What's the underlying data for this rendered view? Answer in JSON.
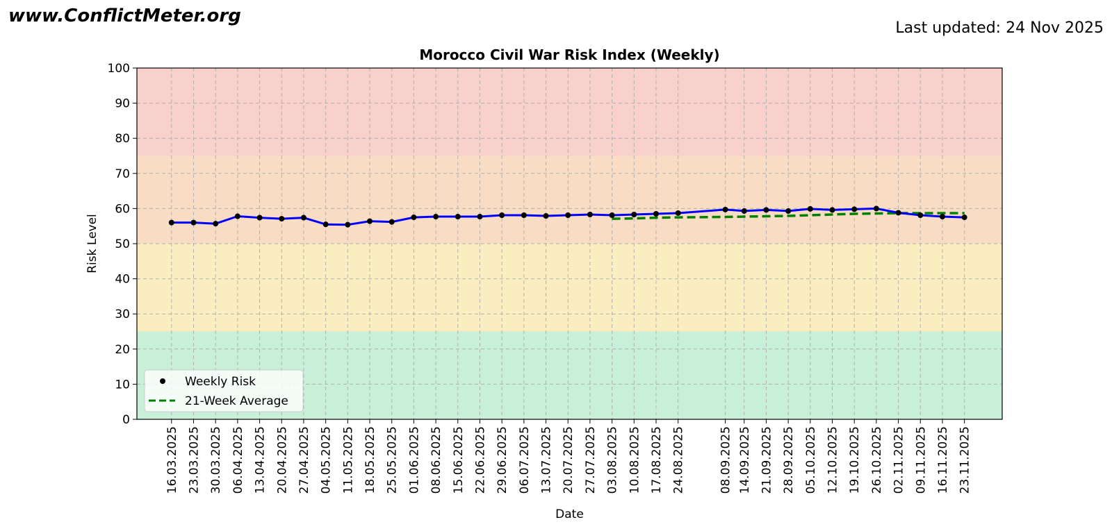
{
  "header": {
    "site": "www.ConflictMeter.org",
    "updated": "Last updated: 24 Nov 2025"
  },
  "chart_data": {
    "type": "line",
    "title": "Morocco Civil War Risk Index (Weekly)",
    "xlabel": "Date",
    "ylabel": "Risk Level",
    "ylim": [
      0,
      100
    ],
    "yticks": [
      0,
      10,
      20,
      30,
      40,
      50,
      60,
      70,
      80,
      90,
      100
    ],
    "grid": true,
    "legend": "bottom-left",
    "colors": {
      "line": "#0000ff",
      "points": "#000000",
      "average": "#008000"
    },
    "bands": [
      {
        "from": 0,
        "to": 25,
        "color": "#c8f0d8"
      },
      {
        "from": 25,
        "to": 50,
        "color": "#faeec0"
      },
      {
        "from": 50,
        "to": 75,
        "color": "#f8dcc4"
      },
      {
        "from": 75,
        "to": 100,
        "color": "#f8d0cc"
      }
    ],
    "xlim": [
      "2025-03-05",
      "2025-12-05"
    ],
    "dates": [
      "2025-03-16",
      "2025-03-23",
      "2025-03-30",
      "2025-04-06",
      "2025-04-13",
      "2025-04-20",
      "2025-04-27",
      "2025-05-04",
      "2025-05-11",
      "2025-05-18",
      "2025-05-25",
      "2025-06-01",
      "2025-06-08",
      "2025-06-15",
      "2025-06-22",
      "2025-06-29",
      "2025-07-06",
      "2025-07-13",
      "2025-07-20",
      "2025-07-27",
      "2025-08-03",
      "2025-08-10",
      "2025-08-17",
      "2025-08-24",
      "2025-09-08",
      "2025-09-14",
      "2025-09-21",
      "2025-09-28",
      "2025-10-05",
      "2025-10-12",
      "2025-10-19",
      "2025-10-26",
      "2025-11-02",
      "2025-11-09",
      "2025-11-16",
      "2025-11-23"
    ],
    "tick_labels": [
      "16.03.2025",
      "23.03.2025",
      "30.03.2025",
      "06.04.2025",
      "13.04.2025",
      "20.04.2025",
      "27.04.2025",
      "04.05.2025",
      "11.05.2025",
      "18.05.2025",
      "25.05.2025",
      "01.06.2025",
      "08.06.2025",
      "15.06.2025",
      "22.06.2025",
      "29.06.2025",
      "06.07.2025",
      "13.07.2025",
      "20.07.2025",
      "27.07.2025",
      "03.08.2025",
      "10.08.2025",
      "17.08.2025",
      "24.08.2025",
      "08.09.2025",
      "14.09.2025",
      "21.09.2025",
      "28.09.2025",
      "05.10.2025",
      "12.10.2025",
      "19.10.2025",
      "26.10.2025",
      "02.11.2025",
      "09.11.2025",
      "16.11.2025",
      "23.11.2025"
    ],
    "series": [
      {
        "name": "Weekly Risk",
        "values": [
          56.0,
          56.0,
          55.7,
          57.8,
          57.4,
          57.1,
          57.4,
          55.5,
          55.4,
          56.4,
          56.2,
          57.5,
          57.7,
          57.7,
          57.7,
          58.1,
          58.1,
          57.9,
          58.1,
          58.3,
          58.1,
          58.3,
          58.5,
          58.7,
          59.7,
          59.3,
          59.6,
          59.3,
          59.9,
          59.6,
          59.8,
          60.0,
          58.8,
          58.1,
          57.7,
          57.5
        ]
      },
      {
        "name": "21-Week Average",
        "values": [
          null,
          null,
          null,
          null,
          null,
          null,
          null,
          null,
          null,
          null,
          null,
          null,
          null,
          null,
          null,
          null,
          null,
          null,
          null,
          null,
          57.1,
          57.2,
          57.4,
          57.5,
          57.6,
          57.7,
          57.8,
          57.9,
          58.1,
          58.3,
          58.5,
          58.6,
          58.7,
          58.7,
          58.7,
          58.7
        ]
      }
    ]
  }
}
